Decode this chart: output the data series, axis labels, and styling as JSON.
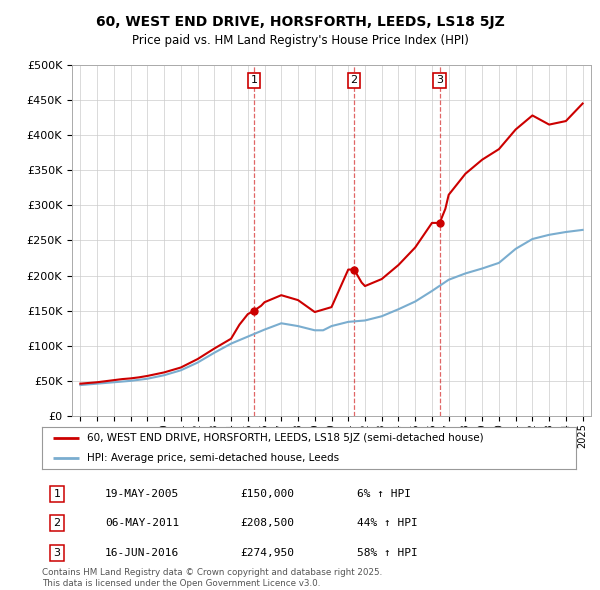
{
  "title": "60, WEST END DRIVE, HORSFORTH, LEEDS, LS18 5JZ",
  "subtitle": "Price paid vs. HM Land Registry's House Price Index (HPI)",
  "legend_line1": "60, WEST END DRIVE, HORSFORTH, LEEDS, LS18 5JZ (semi-detached house)",
  "legend_line2": "HPI: Average price, semi-detached house, Leeds",
  "sale1_date": "19-MAY-2005",
  "sale1_price": "£150,000",
  "sale1_hpi": "6% ↑ HPI",
  "sale1_year": 2005.38,
  "sale1_value": 150000,
  "sale2_date": "06-MAY-2011",
  "sale2_price": "£208,500",
  "sale2_hpi": "44% ↑ HPI",
  "sale2_year": 2011.35,
  "sale2_value": 208500,
  "sale3_date": "16-JUN-2016",
  "sale3_price": "£274,950",
  "sale3_hpi": "58% ↑ HPI",
  "sale3_year": 2016.46,
  "sale3_value": 274950,
  "footer1": "Contains HM Land Registry data © Crown copyright and database right 2025.",
  "footer2": "This data is licensed under the Open Government Licence v3.0.",
  "red_color": "#cc0000",
  "blue_color": "#7aadcf",
  "background_color": "#ffffff",
  "grid_color": "#cccccc",
  "ylim": [
    0,
    500000
  ],
  "xlim_start": 1994.5,
  "xlim_end": 2025.5,
  "hpi_years": [
    1995,
    1995.5,
    1996,
    1996.5,
    1997,
    1997.5,
    1998,
    1998.5,
    1999,
    1999.5,
    2000,
    2000.5,
    2001,
    2001.5,
    2002,
    2002.5,
    2003,
    2003.5,
    2004,
    2004.5,
    2005,
    2005.5,
    2006,
    2006.5,
    2007,
    2007.5,
    2008,
    2008.5,
    2009,
    2009.5,
    2010,
    2010.5,
    2011,
    2011.5,
    2012,
    2012.5,
    2013,
    2013.5,
    2014,
    2014.5,
    2015,
    2015.5,
    2016,
    2016.5,
    2017,
    2017.5,
    2018,
    2018.5,
    2019,
    2019.5,
    2020,
    2020.5,
    2021,
    2021.5,
    2022,
    2022.5,
    2023,
    2023.5,
    2024,
    2024.5,
    2025
  ],
  "hpi_values": [
    44000,
    45000,
    46000,
    47000,
    48000,
    49000,
    50000,
    51500,
    53000,
    55500,
    58000,
    61500,
    65000,
    70500,
    76000,
    83000,
    90000,
    96500,
    103000,
    108000,
    113000,
    118000,
    123000,
    127500,
    132000,
    130000,
    128000,
    125000,
    122000,
    122000,
    128000,
    131000,
    134000,
    135000,
    136000,
    139000,
    142000,
    147000,
    152000,
    157500,
    163000,
    170500,
    178000,
    186000,
    194000,
    198500,
    203000,
    206500,
    210000,
    214000,
    218000,
    228000,
    238000,
    245000,
    252000,
    255000,
    258000,
    260000,
    262000,
    263500,
    265000
  ],
  "red_years": [
    1995,
    1995.5,
    1996,
    1996.5,
    1997,
    1997.5,
    1998,
    1998.5,
    1999,
    1999.5,
    2000,
    2000.5,
    2001,
    2001.5,
    2002,
    2002.5,
    2003,
    2003.5,
    2004,
    2004.5,
    2005,
    2005.38,
    2005.8,
    2006,
    2006.5,
    2007,
    2007.5,
    2008,
    2008.5,
    2009,
    2009.5,
    2010,
    2010.5,
    2011,
    2011.35,
    2011.8,
    2012,
    2012.5,
    2013,
    2013.5,
    2014,
    2014.5,
    2015,
    2015.5,
    2016,
    2016.46,
    2016.8,
    2017,
    2017.5,
    2018,
    2018.5,
    2019,
    2019.5,
    2020,
    2020.5,
    2021,
    2021.5,
    2022,
    2022.5,
    2023,
    2023.5,
    2024,
    2024.5,
    2025
  ],
  "red_values": [
    46000,
    47000,
    48000,
    49500,
    51000,
    52500,
    53500,
    55000,
    57000,
    59500,
    62000,
    65500,
    69000,
    75000,
    81000,
    88500,
    96000,
    103000,
    110000,
    130000,
    145000,
    150000,
    157000,
    162000,
    167000,
    172000,
    168500,
    165000,
    156500,
    148000,
    151500,
    155000,
    181750,
    208500,
    208500,
    190000,
    185000,
    190000,
    195000,
    205000,
    215000,
    227500,
    240000,
    257475,
    274950,
    274950,
    295000,
    315000,
    330000,
    345000,
    355000,
    365000,
    372500,
    380000,
    394000,
    408000,
    418000,
    428000,
    421500,
    415000,
    417500,
    420000,
    432500,
    445000
  ]
}
